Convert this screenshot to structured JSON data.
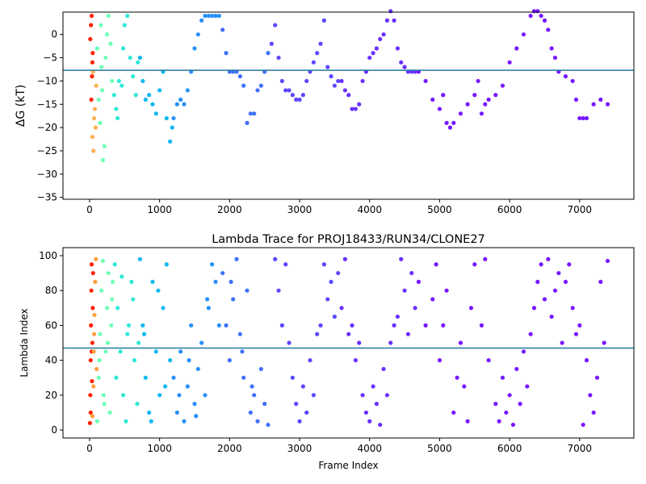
{
  "chart_data": [
    {
      "type": "scatter",
      "ylabel": "ΔG (kT)",
      "xlim": [
        -380,
        7775
      ],
      "ylim": [
        -35.4,
        4.8
      ],
      "xticks": [
        0,
        1000,
        2000,
        3000,
        4000,
        5000,
        6000,
        7000
      ],
      "yticks": [
        {
          "value": -35,
          "label": "−35"
        },
        {
          "value": -30,
          "label": "−30"
        },
        {
          "value": -25,
          "label": "−25"
        },
        {
          "value": -20,
          "label": "−20"
        },
        {
          "value": -15,
          "label": "−15"
        },
        {
          "value": -10,
          "label": "−10"
        },
        {
          "value": -5,
          "label": "−5"
        },
        0
      ],
      "hline": -7.7,
      "hline_color": "#21789f",
      "series": [
        {
          "color": "#ff2000",
          "x": [
            10,
            20,
            30,
            40,
            25,
            35,
            45
          ],
          "values": [
            -1,
            2,
            4,
            -6,
            -14,
            -9,
            -4
          ]
        },
        {
          "color": "#ffb050",
          "x": [
            40,
            55,
            65,
            75,
            85,
            95,
            50
          ],
          "values": [
            -22,
            -25,
            -18,
            -16,
            -20,
            -11,
            -8
          ]
        },
        {
          "color": "#70ffb8",
          "x": [
            110,
            130,
            150,
            170,
            190,
            210,
            230,
            250,
            270,
            300,
            320,
            160,
            180
          ],
          "values": [
            -3,
            -14,
            -19,
            -7,
            -27,
            -24,
            -5,
            0,
            4,
            -2,
            -10,
            2,
            -12
          ]
        },
        {
          "color": "#30e8d8",
          "x": [
            350,
            380,
            420,
            460,
            500,
            540,
            580,
            620,
            660,
            690,
            400,
            480
          ],
          "values": [
            -13,
            -16,
            -10,
            -11,
            2,
            4,
            -5,
            -9,
            -13,
            -6,
            -18,
            -3
          ]
        },
        {
          "color": "#10b8f0",
          "x": [
            720,
            760,
            800,
            850,
            900,
            950,
            1000,
            1050,
            1100,
            1150,
            1180
          ],
          "values": [
            -5,
            -10,
            -14,
            -13,
            -15,
            -17,
            -12,
            -8,
            -18,
            -23,
            -20
          ]
        },
        {
          "color": "#2890f8",
          "x": [
            1200,
            1250,
            1300,
            1350,
            1400,
            1450,
            1500,
            1550,
            1600,
            1650,
            1700,
            1750,
            1800,
            1850
          ],
          "values": [
            -18,
            -15,
            -14,
            -15,
            -12,
            -8,
            -3,
            0,
            3,
            4,
            4,
            4,
            4,
            4
          ]
        },
        {
          "color": "#4070f8",
          "x": [
            1900,
            1950,
            2000,
            2050,
            2100,
            2150,
            2200,
            2250,
            2300,
            2350,
            2400,
            2450,
            2500,
            2550
          ],
          "values": [
            1,
            -4,
            -8,
            -8,
            -8,
            -9,
            -11,
            -19,
            -17,
            -17,
            -12,
            -11,
            -8,
            -4
          ]
        },
        {
          "color": "#5a48fc",
          "x": [
            2600,
            2650,
            2700,
            2750,
            2800,
            2850,
            2900,
            2950,
            3000,
            3050,
            3100,
            3150,
            3200,
            3250,
            3300,
            3350,
            3400,
            3450,
            3500,
            3550
          ],
          "values": [
            -2,
            2,
            -5,
            -10,
            -12,
            -12,
            -13,
            -14,
            -14,
            -13,
            -10,
            -8,
            -6,
            -4,
            -2,
            3,
            -7,
            -9,
            -11,
            -10
          ]
        },
        {
          "color": "#6a30fe",
          "x": [
            3600,
            3650,
            3700,
            3750,
            3800,
            3850,
            3900,
            3950,
            4000,
            4050,
            4100,
            4150,
            4200,
            4250,
            4300,
            4350,
            4400,
            4450,
            4500,
            4550,
            4600,
            4650
          ],
          "values": [
            -10,
            -12,
            -13,
            -16,
            -16,
            -15,
            -10,
            -8,
            -5,
            -4,
            -3,
            -1,
            0,
            3,
            5,
            3,
            -3,
            -6,
            -7,
            -8,
            -8,
            -8
          ]
        },
        {
          "color": "#7818ff",
          "x": [
            4700,
            4800,
            4900,
            5000,
            5050,
            5100,
            5150,
            5200,
            5300,
            5400,
            5500,
            5550,
            5600,
            5650,
            5700,
            5800,
            5900,
            6000,
            6100,
            6200,
            6300,
            6350,
            6400,
            6450,
            6500,
            6550,
            6600,
            6650,
            6700,
            6800,
            6900,
            6950,
            7000,
            7050,
            7100,
            7200,
            7300,
            7400
          ],
          "values": [
            -8,
            -10,
            -14,
            -16,
            -13,
            -19,
            -20,
            -19,
            -17,
            -15,
            -13,
            -10,
            -17,
            -15,
            -14,
            -13,
            -11,
            -6,
            -3,
            0,
            4,
            5,
            5,
            4,
            3,
            1,
            -3,
            -5,
            -8,
            -9,
            -10,
            -14,
            -18,
            -18,
            -18,
            -15,
            -14,
            -15
          ]
        }
      ]
    },
    {
      "type": "scatter",
      "title": "Lambda Trace for PROJ18433/RUN34/CLONE27",
      "xlabel": "Frame Index",
      "ylabel": "Lambda Index",
      "xlim": [
        -380,
        7775
      ],
      "ylim": [
        -4.6,
        104.6
      ],
      "xticks": [
        0,
        1000,
        2000,
        3000,
        4000,
        5000,
        6000,
        7000
      ],
      "yticks": [
        0,
        20,
        40,
        60,
        80,
        100
      ],
      "hline": 47,
      "hline_color": "#21789f",
      "series": [
        {
          "color": "#ff2000",
          "x": [
            5,
            10,
            15,
            20,
            25,
            30,
            35,
            40,
            45,
            50,
            15,
            30
          ],
          "values": [
            4,
            20,
            40,
            60,
            80,
            95,
            28,
            50,
            70,
            90,
            10,
            45
          ]
        },
        {
          "color": "#ffa040",
          "x": [
            40,
            55,
            60,
            70,
            80,
            90,
            100,
            65
          ],
          "values": [
            8,
            25,
            45,
            66,
            85,
            98,
            35,
            55
          ]
        },
        {
          "color": "#70ffb8",
          "x": [
            110,
            130,
            150,
            170,
            190,
            210,
            230,
            250,
            270,
            290,
            310,
            330,
            140,
            200,
            260,
            320
          ],
          "values": [
            5,
            30,
            55,
            80,
            97,
            15,
            45,
            70,
            90,
            10,
            60,
            85,
            40,
            20,
            50,
            75
          ]
        },
        {
          "color": "#30e8d8",
          "x": [
            360,
            400,
            440,
            480,
            520,
            560,
            600,
            640,
            680,
            380,
            460,
            540,
            620,
            700
          ],
          "values": [
            95,
            70,
            45,
            20,
            5,
            60,
            85,
            40,
            15,
            30,
            88,
            55,
            75,
            50
          ]
        },
        {
          "color": "#10b8f0",
          "x": [
            720,
            760,
            800,
            850,
            900,
            950,
            1000,
            1050,
            1100,
            1150,
            780,
            880,
            980,
            1080
          ],
          "values": [
            98,
            60,
            30,
            10,
            85,
            45,
            20,
            70,
            95,
            40,
            55,
            5,
            80,
            25
          ]
        },
        {
          "color": "#2890f8",
          "x": [
            1200,
            1250,
            1300,
            1350,
            1400,
            1450,
            1500,
            1550,
            1600,
            1650,
            1700,
            1750,
            1800,
            1850,
            1280,
            1420,
            1520,
            1680
          ],
          "values": [
            30,
            10,
            45,
            5,
            25,
            60,
            15,
            35,
            50,
            20,
            70,
            95,
            85,
            60,
            20,
            40,
            8,
            75
          ]
        },
        {
          "color": "#4070f8",
          "x": [
            1900,
            1950,
            2000,
            2050,
            2100,
            2150,
            2200,
            2250,
            2300,
            2350,
            2400,
            2450,
            2500,
            2550,
            2020,
            2180,
            2320
          ],
          "values": [
            90,
            60,
            40,
            75,
            98,
            55,
            30,
            80,
            10,
            20,
            5,
            35,
            15,
            3,
            85,
            45,
            25
          ]
        },
        {
          "color": "#5a48fc",
          "x": [
            2650,
            2700,
            2750,
            2800,
            2850,
            2900,
            2950,
            3000,
            3050,
            3100,
            3150,
            3200,
            3250,
            3300,
            3350,
            3400,
            3450,
            3500,
            3550
          ],
          "values": [
            98,
            80,
            60,
            95,
            50,
            30,
            15,
            5,
            25,
            10,
            40,
            20,
            55,
            60,
            95,
            75,
            85,
            65,
            90
          ]
        },
        {
          "color": "#6a30fe",
          "x": [
            3600,
            3650,
            3700,
            3750,
            3800,
            3850,
            3900,
            3950,
            4000,
            4050,
            4100,
            4150,
            4200,
            4250,
            4300,
            4350,
            4400,
            4450,
            4500,
            4550,
            4600,
            4650
          ],
          "values": [
            70,
            98,
            55,
            60,
            40,
            50,
            20,
            10,
            5,
            25,
            15,
            3,
            35,
            20,
            50,
            60,
            65,
            98,
            80,
            55,
            90,
            70
          ]
        },
        {
          "color": "#7818ff",
          "x": [
            4700,
            4800,
            4900,
            4950,
            5000,
            5050,
            5100,
            5200,
            5250,
            5300,
            5350,
            5400,
            5450,
            5500,
            5600,
            5650,
            5700,
            5800,
            5850,
            5900,
            5950,
            6000,
            6050,
            6100,
            6150,
            6200,
            6250,
            6300,
            6350,
            6400,
            6450,
            6500,
            6550,
            6600,
            6650,
            6700,
            6750,
            6800,
            6850,
            6900,
            6950,
            7000,
            7050,
            7100,
            7150,
            7200,
            7250,
            7300,
            7350,
            7400
          ],
          "values": [
            85,
            60,
            75,
            95,
            40,
            60,
            80,
            10,
            30,
            50,
            25,
            5,
            70,
            95,
            60,
            98,
            40,
            15,
            5,
            30,
            10,
            20,
            3,
            35,
            15,
            45,
            25,
            55,
            70,
            85,
            95,
            75,
            98,
            65,
            80,
            90,
            50,
            85,
            95,
            70,
            55,
            60,
            3,
            40,
            20,
            10,
            30,
            85,
            50,
            97
          ]
        }
      ]
    }
  ]
}
